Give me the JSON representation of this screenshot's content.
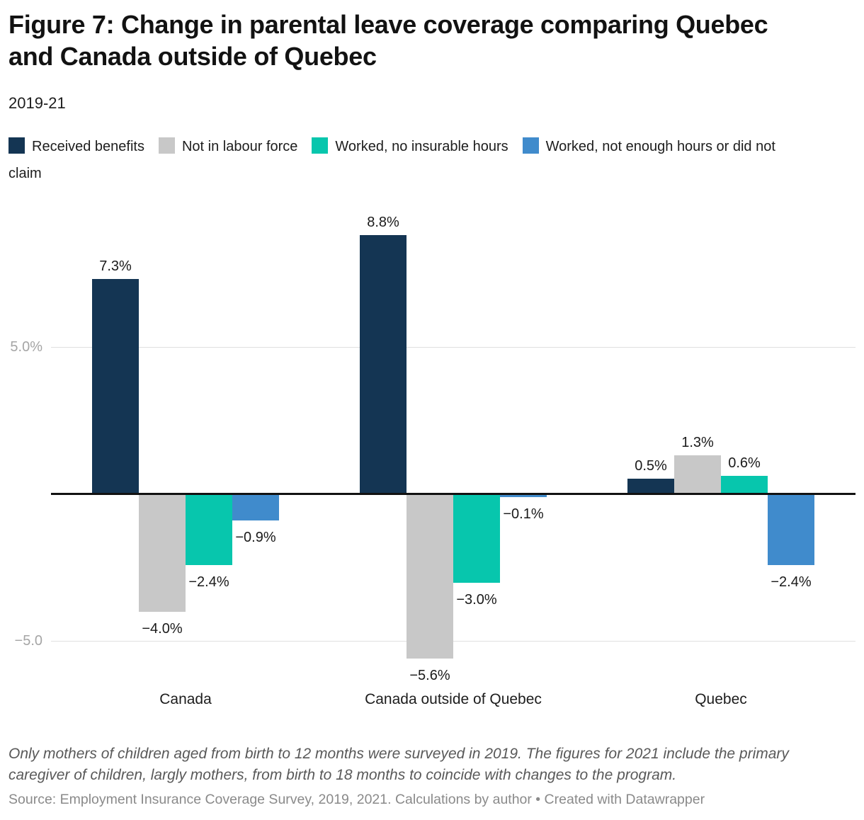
{
  "header": {
    "title": "Figure 7: Change in parental leave coverage comparing Quebec and Canada outside of Quebec",
    "subtitle": "2019-21"
  },
  "chart_data": {
    "type": "bar",
    "title": "Figure 7: Change in parental leave coverage comparing Quebec and Canada outside of Quebec",
    "subtitle": "2019-21",
    "categories": [
      "Canada",
      "Canada outside of Quebec",
      "Quebec"
    ],
    "series": [
      {
        "name": "Received benefits",
        "color": "#143553",
        "values": [
          7.3,
          8.8,
          0.5
        ],
        "value_labels": [
          "7.3%",
          "8.8%",
          "0.5%"
        ]
      },
      {
        "name": "Not in labour force",
        "color": "#c8c8c8",
        "values": [
          -4.0,
          -5.6,
          1.3
        ],
        "value_labels": [
          "−4.0%",
          "−5.6%",
          "1.3%"
        ]
      },
      {
        "name": "Worked, no insurable hours",
        "color": "#07c6ad",
        "values": [
          -2.4,
          -3.0,
          0.6
        ],
        "value_labels": [
          "−2.4%",
          "−3.0%",
          "0.6%"
        ]
      },
      {
        "name": "Worked, not enough hours or did not claim",
        "color": "#408bcc",
        "values": [
          -0.9,
          -0.1,
          -2.4
        ],
        "value_labels": [
          "−0.9%",
          "−0.1%",
          "−2.4%"
        ]
      }
    ],
    "y_axis": {
      "ticks": [
        {
          "label": "5.0%",
          "value": 5
        },
        {
          "label": "−5.0",
          "value": -5
        }
      ],
      "range": [
        -6.6,
        9.9
      ],
      "grid": true,
      "zero_baseline": true
    },
    "legend_position": "top",
    "xlabel": "",
    "ylabel": ""
  },
  "footer": {
    "note": "Only mothers of children aged from birth to 12 months were surveyed in 2019. The figures for 2021 include the primary caregiver of children, largly mothers, from birth to 18 months to coincide with changes to the program.",
    "source": "Source: Employment Insurance Coverage Survey, 2019, 2021. Calculations by author • Created with Datawrapper"
  }
}
